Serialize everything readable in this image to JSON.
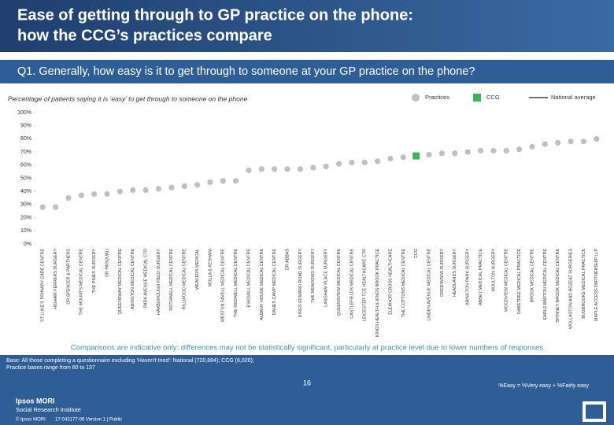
{
  "header": {
    "title_line1": "Ease of getting through to GP practice on the phone:",
    "title_line2": "how the CCG’s practices compare",
    "question": "Q1. Generally, how easy is it to get through to someone at your GP practice on the phone?"
  },
  "chart_data": {
    "type": "scatter",
    "subtitle": "Percentage of patients saying it is ‘easy’ to get through to someone on the phone",
    "categories": [
      "ST LUKE'S PRIMARY CARE CENTRE",
      "HIGHAM FERRERS SURGERY",
      "DR SPENCER & PARTNERS",
      "THE MOUNTS MEDICAL CENTRE",
      "THE PINES SURGERY",
      "DR PASQUALI",
      "QUEENSWAY MEDICAL CENTRE",
      "ABINGTON MEDICAL CENTRE",
      "PARK AVENUE MEDICAL CTR",
      "HARBOROUGH FIELD SURGERY",
      "ROTHWELL MEDICAL CENTRE",
      "RILLWOOD MEDICAL CENTRE",
      "WEAVERS MEDICAL",
      "MOLLA & KESHANI",
      "WESTON FAVELL MEDICAL CENTRE",
      "THE REDWELL MEDICAL CENTRE",
      "ESKDAILL MEDICAL CENTRE",
      "ALBANY HOUSE MEDICAL CENTRE",
      "DANES CAMP MEDICAL CENTRE",
      "DR ABBAS",
      "KINGS EDWARD ROAD SURGERY",
      "THE MEADOWS SURGERY",
      "LANGHAM PLACE SURGERY",
      "QUEENSVIEW MEDICAL CENTRE",
      "CASTLEFIELDS MEDICAL CENTRE",
      "LEICESTER TCE HEALTHCARE CTR",
      "KINGS HEALTH & KINGS BROOK PRACTICE",
      "ELEANOR CROSS HEALTHCARE",
      "THE COTTONS MEDICAL CENTRE",
      "CCG",
      "LINDEN AVENUE MEDICAL CENTRE",
      "GREENVIEW SURGERY",
      "HEADLANDS SURGERY",
      "ABINGTON PARK SURGERY",
      "ABBEY MEDICAL PRACTICE",
      "MOULTON SURGERY",
      "WOODVIEW MEDICAL CENTRE",
      "OAKETREE MEDICAL PRACTICE",
      "BROOK MEDICAL CENTRE",
      "EARLS BARTON MEDICAL CENTRE",
      "SPINNEY BROOK MEDICAL CENTRE",
      "WOLLASTON AND BOZEAT SURGERIES",
      "BUGBROOKE MEDICAL PRACTICE",
      "MAPLE ACCESS PARTNERSHIP LLP"
    ],
    "series": [
      {
        "name": "Practices",
        "color": "#bfbfbf",
        "marker": "circle",
        "values": [
          28,
          28,
          35,
          37,
          38,
          38,
          40,
          41,
          41,
          42,
          43,
          44,
          45,
          47,
          48,
          48,
          56,
          57,
          57,
          57,
          57,
          58,
          59,
          61,
          62,
          62,
          63,
          65,
          66,
          null,
          68,
          69,
          69,
          70,
          71,
          71,
          71,
          72,
          74,
          76,
          77,
          78,
          78,
          80
        ]
      },
      {
        "name": "CCG",
        "color": "#3cb55a",
        "marker": "square",
        "values": [
          null,
          null,
          null,
          null,
          null,
          null,
          null,
          null,
          null,
          null,
          null,
          null,
          null,
          null,
          null,
          null,
          null,
          null,
          null,
          null,
          null,
          null,
          null,
          null,
          null,
          null,
          null,
          null,
          null,
          67,
          null,
          null,
          null,
          null,
          null,
          null,
          null,
          null,
          null,
          null,
          null,
          null,
          null,
          null
        ]
      },
      {
        "name": "National average",
        "color": "#404040",
        "marker": "line",
        "values": [
          null,
          null,
          null,
          null,
          null,
          null,
          null,
          null,
          null,
          null,
          null,
          null,
          null,
          null,
          null,
          null,
          null,
          null,
          null,
          null,
          null,
          null,
          null,
          null,
          null,
          null,
          null,
          null,
          null,
          null,
          null,
          null,
          null,
          null,
          null,
          null,
          null,
          null,
          null,
          null,
          null,
          null,
          null,
          null
        ]
      }
    ],
    "ylim": [
      0,
      100
    ],
    "yticks": [
      {
        "value": 0,
        "label": "0%"
      },
      {
        "value": 10,
        "label": "10%"
      },
      {
        "value": 20,
        "label": "20%"
      },
      {
        "value": 30,
        "label": "30%"
      },
      {
        "value": 40,
        "label": "40%"
      },
      {
        "value": 50,
        "label": "50%"
      },
      {
        "value": 60,
        "label": "60%"
      },
      {
        "value": 70,
        "label": "70%"
      },
      {
        "value": 80,
        "label": "80%"
      },
      {
        "value": 90,
        "label": "90%"
      },
      {
        "value": 100,
        "label": "100%"
      }
    ],
    "grid": false,
    "legend": "top-right"
  },
  "footer": {
    "note": "Comparisons are indicative only: differences may not be statistically significant, particularly at practice level due to lower numbers of responses",
    "base": "Base: All those completing a questionnaire excluding ‘Haven’t tried’: National (720,884); CCG (6,020);",
    "base2": "Practice bases range from 60 to 137",
    "definition": "%Easy = %Very easy + %Fairly easy",
    "page": "16",
    "brand": "Ipsos MORI",
    "brand2": "Social Research Institute",
    "copyright": "© Ipsos MORI",
    "job": "17-043177-06 Version 1 | Public"
  }
}
